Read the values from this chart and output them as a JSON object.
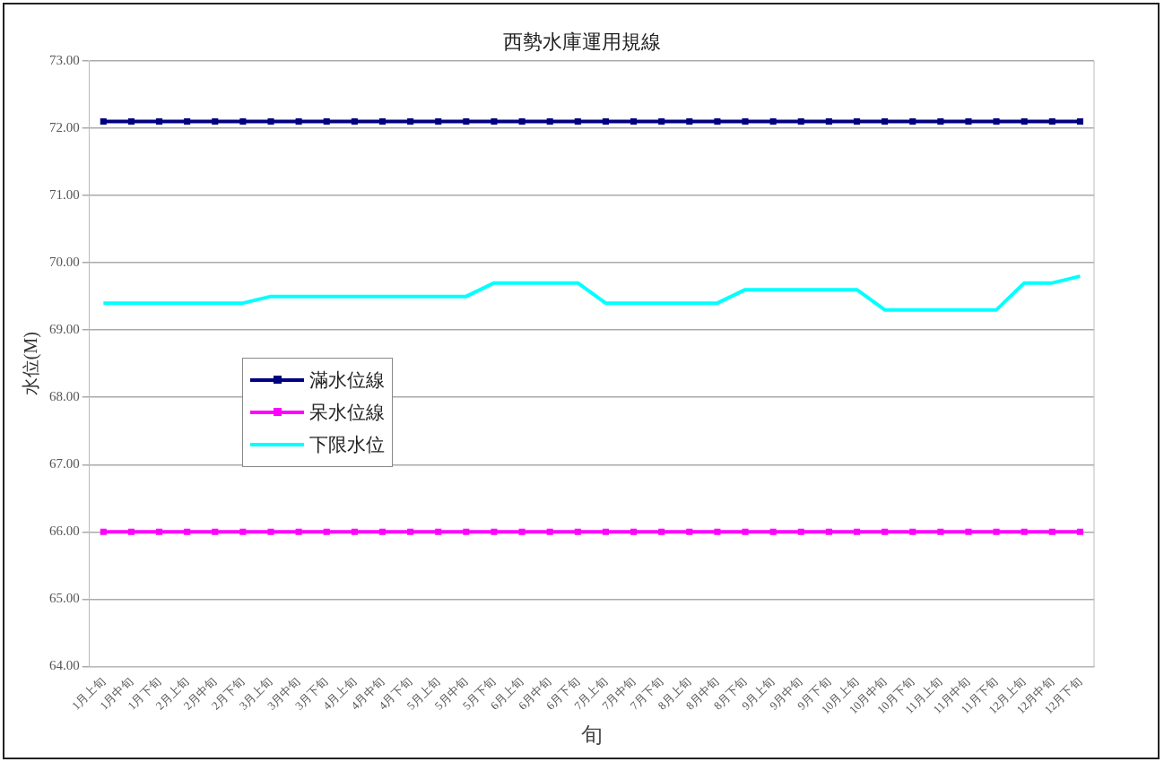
{
  "chart_data": {
    "type": "line",
    "title": "西勢水庫運用規線",
    "xlabel": "旬",
    "ylabel": "水位(M)",
    "categories": [
      "1月上旬",
      "1月中旬",
      "1月下旬",
      "2月上旬",
      "2月中旬",
      "2月下旬",
      "3月上旬",
      "3月中旬",
      "3月下旬",
      "4月上旬",
      "4月中旬",
      "4月下旬",
      "5月上旬",
      "5月中旬",
      "5月下旬",
      "6月上旬",
      "6月中旬",
      "6月下旬",
      "7月上旬",
      "7月中旬",
      "7月下旬",
      "8月上旬",
      "8月中旬",
      "8月下旬",
      "9月上旬",
      "9月中旬",
      "9月下旬",
      "10月上旬",
      "10月中旬",
      "10月下旬",
      "11月上旬",
      "11月中旬",
      "11月下旬",
      "12月上旬",
      "12月中旬",
      "12月下旬"
    ],
    "series": [
      {
        "name": "滿水位線",
        "color": "#000080",
        "marker": "square",
        "values": [
          72.1,
          72.1,
          72.1,
          72.1,
          72.1,
          72.1,
          72.1,
          72.1,
          72.1,
          72.1,
          72.1,
          72.1,
          72.1,
          72.1,
          72.1,
          72.1,
          72.1,
          72.1,
          72.1,
          72.1,
          72.1,
          72.1,
          72.1,
          72.1,
          72.1,
          72.1,
          72.1,
          72.1,
          72.1,
          72.1,
          72.1,
          72.1,
          72.1,
          72.1,
          72.1,
          72.1
        ]
      },
      {
        "name": "呆水位線",
        "color": "#ff00ff",
        "marker": "square",
        "values": [
          66.0,
          66.0,
          66.0,
          66.0,
          66.0,
          66.0,
          66.0,
          66.0,
          66.0,
          66.0,
          66.0,
          66.0,
          66.0,
          66.0,
          66.0,
          66.0,
          66.0,
          66.0,
          66.0,
          66.0,
          66.0,
          66.0,
          66.0,
          66.0,
          66.0,
          66.0,
          66.0,
          66.0,
          66.0,
          66.0,
          66.0,
          66.0,
          66.0,
          66.0,
          66.0,
          66.0
        ]
      },
      {
        "name": "下限水位",
        "color": "#00ffff",
        "marker": "none",
        "values": [
          69.4,
          69.4,
          69.4,
          69.4,
          69.4,
          69.4,
          69.5,
          69.5,
          69.5,
          69.5,
          69.5,
          69.5,
          69.5,
          69.5,
          69.7,
          69.7,
          69.7,
          69.7,
          69.4,
          69.4,
          69.4,
          69.4,
          69.4,
          69.6,
          69.6,
          69.6,
          69.6,
          69.6,
          69.3,
          69.3,
          69.3,
          69.3,
          69.3,
          69.7,
          69.7,
          69.8
        ]
      }
    ],
    "ylim": [
      64,
      73
    ],
    "yticks": [
      {
        "value": 64,
        "label": "64.00"
      },
      {
        "value": 65,
        "label": "65.00"
      },
      {
        "value": 66,
        "label": "66.00"
      },
      {
        "value": 67,
        "label": "67.00"
      },
      {
        "value": 68,
        "label": "68.00"
      },
      {
        "value": 69,
        "label": "69.00"
      },
      {
        "value": 70,
        "label": "70.00"
      },
      {
        "value": 71,
        "label": "71.00"
      },
      {
        "value": 72,
        "label": "72.00"
      },
      {
        "value": 73,
        "label": "73.00"
      }
    ],
    "grid": "y",
    "legend": "left",
    "line_style": "solid"
  }
}
